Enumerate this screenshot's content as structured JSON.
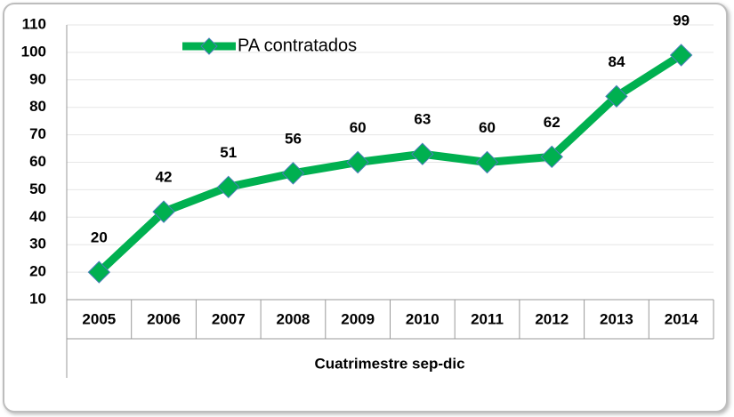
{
  "chart_data": {
    "type": "line",
    "categories": [
      "2005",
      "2006",
      "2007",
      "2008",
      "2009",
      "2010",
      "2011",
      "2012",
      "2013",
      "2014"
    ],
    "series": [
      {
        "name": "PA contratados",
        "color": "#00b050",
        "values": [
          20,
          42,
          51,
          56,
          60,
          63,
          60,
          62,
          84,
          99
        ]
      }
    ],
    "xlabel": "Cuatrimestre sep-dic",
    "ylim": [
      10,
      110
    ],
    "yticks": [
      10,
      20,
      30,
      40,
      50,
      60,
      70,
      80,
      90,
      100,
      110
    ],
    "grid": true,
    "legend": "top-left"
  }
}
